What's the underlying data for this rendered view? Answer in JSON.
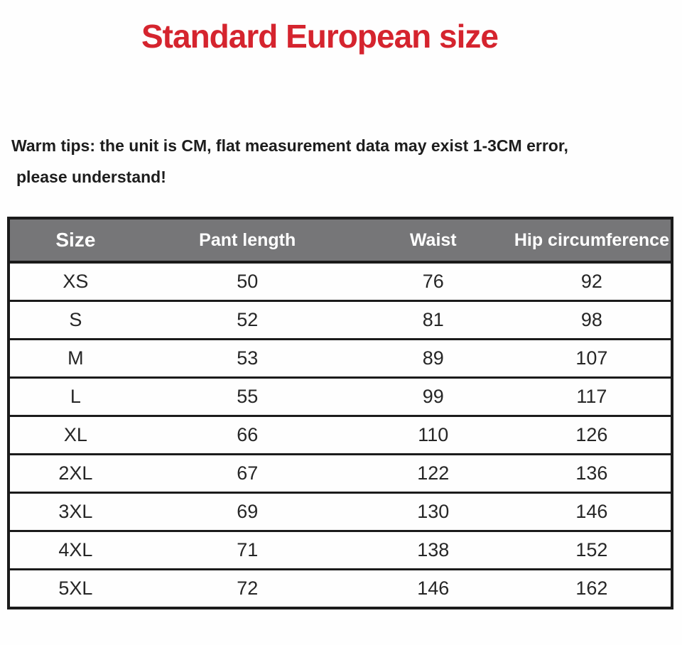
{
  "page": {
    "title": "Standard European size",
    "tips": {
      "line1": "Warm tips: the unit is CM, flat measurement data may exist 1-3CM error,",
      "line2": "please understand!"
    }
  },
  "size_chart": {
    "unit": "CM",
    "headers": [
      "Size",
      "Pant length",
      "Waist",
      "Hip circumference"
    ],
    "rows": [
      [
        "XS",
        "50",
        "76",
        "92"
      ],
      [
        "S",
        "52",
        "81",
        "98"
      ],
      [
        "M",
        "53",
        "89",
        "107"
      ],
      [
        "L",
        "55",
        "99",
        "117"
      ],
      [
        "XL",
        "66",
        "110",
        "126"
      ],
      [
        "2XL",
        "67",
        "122",
        "136"
      ],
      [
        "3XL",
        "69",
        "130",
        "146"
      ],
      [
        "4XL",
        "71",
        "138",
        "152"
      ],
      [
        "5XL",
        "72",
        "146",
        "162"
      ]
    ]
  },
  "colors": {
    "title_red": "#d5242e",
    "header_bg": "#767678",
    "header_text": "#ffffff",
    "border": "#1b1b1b"
  }
}
